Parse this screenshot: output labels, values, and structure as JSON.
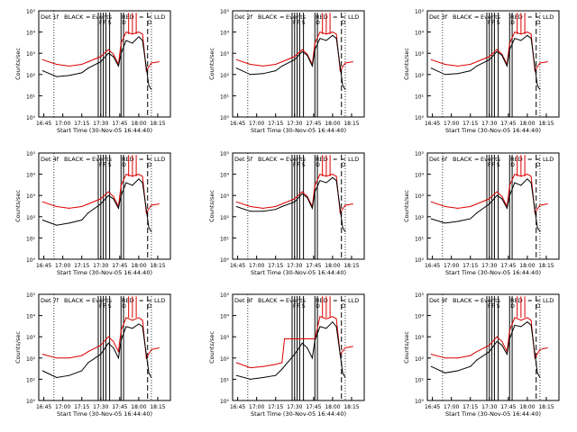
{
  "figure": {
    "y_tick_labels": [
      "10⁰",
      "10¹",
      "10²",
      "10³",
      "10⁴",
      "10⁵"
    ],
    "x_tick_labels": [
      "16:45",
      "17:00",
      "17:15",
      "17:30",
      "17:45",
      "18:00",
      "18:15"
    ],
    "xlabel": "Start Time (30-Nov-05 16:44:40)",
    "ylabel": "Counts/sec",
    "legend": {
      "black_label": "BLACK",
      "black_marker": "=",
      "events_label": "Events",
      "red_label": "RED",
      "red_marker": "=",
      "lld_label": "LLD",
      "lld_marker": "="
    },
    "flag_labels": [
      "F",
      "F",
      "S",
      "D",
      "O"
    ]
  },
  "colors": {
    "black_series": "#000000",
    "red_series": "#dd0000",
    "axes": "#000000"
  },
  "chart_data": [
    {
      "type": "line",
      "title": "Det 1f",
      "ylabel": "Counts/sec",
      "xlabel": "Start Time (30-Nov-05 16:44:40)",
      "ylim": [
        1,
        100000
      ],
      "y_scale": "log",
      "x_ticks": [
        "16:45",
        "17:00",
        "17:15",
        "17:30",
        "17:45",
        "18:00",
        "18:15"
      ],
      "series": [
        {
          "name": "RED",
          "x": [
            "16:44",
            "16:55",
            "17:05",
            "17:15",
            "17:20",
            "17:30",
            "17:36",
            "17:40",
            "17:44",
            "17:46",
            "17:50",
            "17:55",
            "18:00",
            "18:03",
            "18:06",
            "18:10",
            "18:16"
          ],
          "values": [
            500,
            300,
            250,
            300,
            400,
            700,
            1500,
            900,
            300,
            3000,
            10000,
            8000,
            10000,
            8000,
            150,
            350,
            400
          ]
        },
        {
          "name": "BLACK",
          "x": [
            "16:44",
            "16:55",
            "17:05",
            "17:15",
            "17:20",
            "17:30",
            "17:36",
            "17:40",
            "17:44",
            "17:46",
            "17:50",
            "17:55",
            "18:00",
            "18:03",
            "18:08",
            "18:10"
          ],
          "values": [
            150,
            80,
            90,
            120,
            200,
            400,
            1000,
            700,
            250,
            1000,
            4000,
            3000,
            6000,
            4000,
            30,
            20
          ]
        }
      ]
    },
    {
      "type": "line",
      "title": "Det 2f",
      "ylabel": "Counts/sec",
      "xlabel": "Start Time (30-Nov-05 16:44:40)",
      "ylim": [
        1,
        100000
      ],
      "y_scale": "log",
      "x_ticks": [
        "16:45",
        "17:00",
        "17:15",
        "17:30",
        "17:45",
        "18:00",
        "18:15"
      ],
      "series": [
        {
          "name": "RED",
          "x": [
            "16:44",
            "16:55",
            "17:05",
            "17:15",
            "17:20",
            "17:30",
            "17:36",
            "17:40",
            "17:44",
            "17:46",
            "17:50",
            "17:55",
            "18:00",
            "18:03",
            "18:06",
            "18:10",
            "18:16"
          ],
          "values": [
            500,
            300,
            250,
            300,
            400,
            700,
            1500,
            900,
            300,
            3000,
            10000,
            8000,
            10000,
            8000,
            150,
            350,
            400
          ]
        },
        {
          "name": "BLACK",
          "x": [
            "16:44",
            "16:55",
            "17:05",
            "17:15",
            "17:20",
            "17:30",
            "17:36",
            "17:40",
            "17:44",
            "17:46",
            "17:50",
            "17:55",
            "18:00",
            "18:03",
            "18:08",
            "18:10"
          ],
          "values": [
            200,
            100,
            110,
            150,
            250,
            500,
            1200,
            800,
            250,
            1500,
            5000,
            4000,
            7000,
            5000,
            30,
            20
          ]
        }
      ]
    },
    {
      "type": "line",
      "title": "Det 3f",
      "ylabel": "Counts/sec",
      "xlabel": "Start Time (30-Nov-05 16:44:40)",
      "ylim": [
        1,
        100000
      ],
      "y_scale": "log",
      "x_ticks": [
        "16:45",
        "17:00",
        "17:15",
        "17:30",
        "17:45",
        "18:00",
        "18:15"
      ],
      "series": [
        {
          "name": "RED",
          "x": [
            "16:44",
            "16:55",
            "17:05",
            "17:15",
            "17:20",
            "17:30",
            "17:36",
            "17:40",
            "17:44",
            "17:46",
            "17:50",
            "17:55",
            "18:00",
            "18:03",
            "18:06",
            "18:10",
            "18:16"
          ],
          "values": [
            500,
            300,
            250,
            300,
            400,
            700,
            1500,
            900,
            300,
            3000,
            10000,
            8000,
            10000,
            8000,
            150,
            350,
            400
          ]
        },
        {
          "name": "BLACK",
          "x": [
            "16:44",
            "16:55",
            "17:05",
            "17:15",
            "17:20",
            "17:30",
            "17:36",
            "17:40",
            "17:44",
            "17:46",
            "17:50",
            "17:55",
            "18:00",
            "18:03",
            "18:08",
            "18:10"
          ],
          "values": [
            200,
            100,
            110,
            150,
            250,
            500,
            1200,
            800,
            250,
            1500,
            5000,
            4000,
            7000,
            5000,
            30,
            20
          ]
        }
      ]
    },
    {
      "type": "line",
      "title": "Det 4f",
      "ylabel": "Counts/sec",
      "xlabel": "Start Time (30-Nov-05 16:44:40)",
      "ylim": [
        1,
        100000
      ],
      "y_scale": "log",
      "x_ticks": [
        "16:45",
        "17:00",
        "17:15",
        "17:30",
        "17:45",
        "18:00",
        "18:15"
      ],
      "series": [
        {
          "name": "RED",
          "x": [
            "16:44",
            "16:55",
            "17:05",
            "17:15",
            "17:20",
            "17:30",
            "17:36",
            "17:40",
            "17:44",
            "17:46",
            "17:50",
            "17:55",
            "18:00",
            "18:03",
            "18:06",
            "18:10",
            "18:16"
          ],
          "values": [
            500,
            300,
            250,
            300,
            400,
            700,
            1500,
            900,
            300,
            3000,
            10000,
            8000,
            10000,
            8000,
            150,
            350,
            400
          ]
        },
        {
          "name": "BLACK",
          "x": [
            "16:44",
            "16:55",
            "17:05",
            "17:15",
            "17:20",
            "17:30",
            "17:36",
            "17:40",
            "17:44",
            "17:46",
            "17:50",
            "17:55",
            "18:00",
            "18:03",
            "18:08",
            "18:10"
          ],
          "values": [
            70,
            40,
            50,
            70,
            150,
            400,
            1000,
            700,
            250,
            1000,
            4000,
            3000,
            6000,
            4000,
            30,
            20
          ]
        }
      ]
    },
    {
      "type": "line",
      "title": "Det 5f",
      "ylabel": "Counts/sec",
      "xlabel": "Start Time (30-Nov-05 16:44:40)",
      "ylim": [
        1,
        100000
      ],
      "y_scale": "log",
      "x_ticks": [
        "16:45",
        "17:00",
        "17:15",
        "17:30",
        "17:45",
        "18:00",
        "18:15"
      ],
      "series": [
        {
          "name": "RED",
          "x": [
            "16:44",
            "16:55",
            "17:05",
            "17:15",
            "17:20",
            "17:30",
            "17:36",
            "17:40",
            "17:44",
            "17:46",
            "17:50",
            "17:55",
            "18:00",
            "18:03",
            "18:06",
            "18:10",
            "18:16"
          ],
          "values": [
            500,
            300,
            250,
            300,
            400,
            700,
            1500,
            900,
            300,
            3000,
            10000,
            8000,
            10000,
            8000,
            150,
            350,
            400
          ]
        },
        {
          "name": "BLACK",
          "x": [
            "16:44",
            "16:55",
            "17:05",
            "17:15",
            "17:20",
            "17:30",
            "17:36",
            "17:40",
            "17:44",
            "17:46",
            "17:50",
            "17:55",
            "18:00",
            "18:03",
            "18:08",
            "18:10"
          ],
          "values": [
            300,
            180,
            180,
            220,
            300,
            500,
            1200,
            800,
            250,
            1500,
            5000,
            4000,
            7000,
            5000,
            30,
            20
          ]
        }
      ]
    },
    {
      "type": "line",
      "title": "Det 6f",
      "ylabel": "Counts/sec",
      "xlabel": "Start Time (30-Nov-05 16:44:40)",
      "ylim": [
        1,
        100000
      ],
      "y_scale": "log",
      "x_ticks": [
        "16:45",
        "17:00",
        "17:15",
        "17:30",
        "17:45",
        "18:00",
        "18:15"
      ],
      "series": [
        {
          "name": "RED",
          "x": [
            "16:44",
            "16:55",
            "17:05",
            "17:15",
            "17:20",
            "17:30",
            "17:36",
            "17:40",
            "17:44",
            "17:46",
            "17:50",
            "17:55",
            "18:00",
            "18:03",
            "18:06",
            "18:10",
            "18:16"
          ],
          "values": [
            500,
            300,
            250,
            300,
            400,
            700,
            1500,
            900,
            300,
            3000,
            10000,
            8000,
            10000,
            8000,
            150,
            350,
            400
          ]
        },
        {
          "name": "BLACK",
          "x": [
            "16:44",
            "16:55",
            "17:05",
            "17:15",
            "17:20",
            "17:30",
            "17:36",
            "17:40",
            "17:44",
            "17:46",
            "17:50",
            "17:55",
            "18:00",
            "18:03",
            "18:08",
            "18:10"
          ],
          "values": [
            80,
            50,
            60,
            80,
            150,
            400,
            1000,
            700,
            250,
            1000,
            4000,
            3000,
            6000,
            4000,
            30,
            20
          ]
        }
      ]
    },
    {
      "type": "line",
      "title": "Det 7f",
      "ylabel": "Counts/sec",
      "xlabel": "Start Time (30-Nov-05 16:44:40)",
      "ylim": [
        1,
        100000
      ],
      "y_scale": "log",
      "x_ticks": [
        "16:45",
        "17:00",
        "17:15",
        "17:30",
        "17:45",
        "18:00",
        "18:15"
      ],
      "series": [
        {
          "name": "RED",
          "x": [
            "16:44",
            "16:55",
            "17:05",
            "17:15",
            "17:20",
            "17:30",
            "17:36",
            "17:40",
            "17:44",
            "17:46",
            "17:50",
            "17:55",
            "18:00",
            "18:03",
            "18:06",
            "18:10",
            "18:16"
          ],
          "values": [
            150,
            100,
            100,
            130,
            200,
            400,
            1000,
            600,
            200,
            2000,
            8000,
            6000,
            8000,
            6000,
            100,
            250,
            300
          ]
        },
        {
          "name": "BLACK",
          "x": [
            "16:44",
            "16:55",
            "17:05",
            "17:15",
            "17:20",
            "17:30",
            "17:36",
            "17:40",
            "17:44",
            "17:46",
            "17:50",
            "17:55",
            "18:00",
            "18:03",
            "18:08",
            "18:10"
          ],
          "values": [
            25,
            12,
            15,
            25,
            60,
            150,
            500,
            300,
            100,
            700,
            3000,
            2500,
            4000,
            3000,
            20,
            12
          ]
        }
      ]
    },
    {
      "type": "line",
      "title": "Det 8f",
      "ylabel": "Counts/sec",
      "xlabel": "Start Time (30-Nov-05 16:44:40)",
      "ylim": [
        1,
        100000
      ],
      "y_scale": "log",
      "x_ticks": [
        "16:45",
        "17:00",
        "17:15",
        "17:30",
        "17:45",
        "18:00",
        "18:15"
      ],
      "series": [
        {
          "name": "RED",
          "x": [
            "16:44",
            "16:55",
            "17:05",
            "17:15",
            "17:20",
            "17:22",
            "17:30",
            "17:36",
            "17:40",
            "17:44",
            "17:46",
            "17:50",
            "17:55",
            "18:00",
            "18:03",
            "18:06",
            "18:10",
            "18:16"
          ],
          "values": [
            60,
            35,
            40,
            50,
            60,
            800,
            800,
            800,
            800,
            800,
            800,
            9000,
            7000,
            9000,
            7000,
            150,
            300,
            350
          ]
        },
        {
          "name": "BLACK",
          "x": [
            "16:44",
            "16:55",
            "17:05",
            "17:15",
            "17:20",
            "17:30",
            "17:36",
            "17:40",
            "17:44",
            "17:46",
            "17:50",
            "17:55",
            "18:00",
            "18:03",
            "18:08",
            "18:10"
          ],
          "values": [
            15,
            10,
            12,
            15,
            30,
            150,
            500,
            300,
            100,
            700,
            3000,
            2500,
            5000,
            3000,
            20,
            12
          ]
        }
      ]
    },
    {
      "type": "line",
      "title": "Det 9f",
      "ylabel": "Counts/sec",
      "xlabel": "Start Time (30-Nov-05 16:44:40)",
      "ylim": [
        1,
        100000
      ],
      "y_scale": "log",
      "x_ticks": [
        "16:45",
        "17:00",
        "17:15",
        "17:30",
        "17:45",
        "18:00",
        "18:15"
      ],
      "series": [
        {
          "name": "RED",
          "x": [
            "16:44",
            "16:55",
            "17:05",
            "17:15",
            "17:20",
            "17:30",
            "17:36",
            "17:40",
            "17:44",
            "17:46",
            "17:50",
            "17:55",
            "18:00",
            "18:03",
            "18:06",
            "18:10",
            "18:16"
          ],
          "values": [
            150,
            100,
            100,
            130,
            200,
            400,
            1000,
            600,
            200,
            2000,
            8000,
            6000,
            8000,
            6000,
            100,
            250,
            300
          ]
        },
        {
          "name": "BLACK",
          "x": [
            "16:44",
            "16:55",
            "17:05",
            "17:15",
            "17:20",
            "17:30",
            "17:36",
            "17:40",
            "17:44",
            "17:46",
            "17:50",
            "17:55",
            "18:00",
            "18:03",
            "18:08",
            "18:10"
          ],
          "values": [
            40,
            20,
            25,
            40,
            80,
            200,
            600,
            400,
            150,
            800,
            3500,
            3000,
            5000,
            3500,
            20,
            12
          ]
        }
      ]
    }
  ]
}
